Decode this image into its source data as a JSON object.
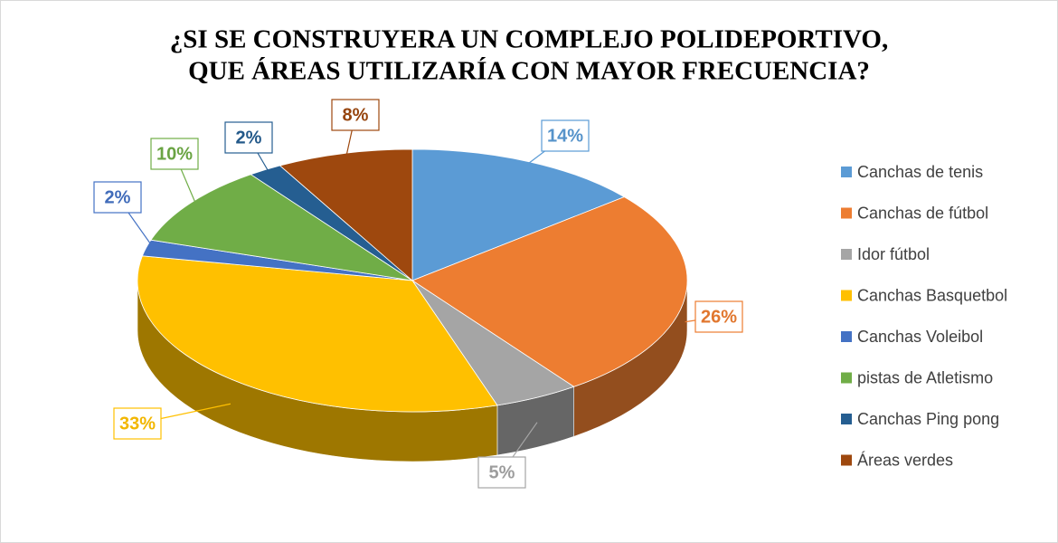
{
  "chart_data": {
    "type": "pie",
    "title": [
      "¿SI SE CONSTRUYERA UN COMPLEJO POLIDEPORTIVO,",
      "QUE ÁREAS UTILIZARÍA CON MAYOR FRECUENCIA?"
    ],
    "categories": [
      "Canchas de tenis",
      " Canchas de fútbol",
      " Idor fútbol",
      "Canchas Basquetbol",
      "Canchas Voleibol",
      "pistas de Atletismo",
      "Canchas Ping pong",
      "Áreas verdes"
    ],
    "values": [
      14,
      26,
      5,
      33,
      2,
      10,
      2,
      8
    ],
    "value_labels": [
      "14%",
      "26%",
      "5%",
      "33%",
      "2%",
      "10%",
      "2%",
      "8%"
    ],
    "colors": [
      "#5b9bd5",
      "#ed7d31",
      "#a5a5a5",
      "#ffc000",
      "#4472c4",
      "#70ad47",
      "#255e91",
      "#9e480e"
    ],
    "legend": "right"
  }
}
